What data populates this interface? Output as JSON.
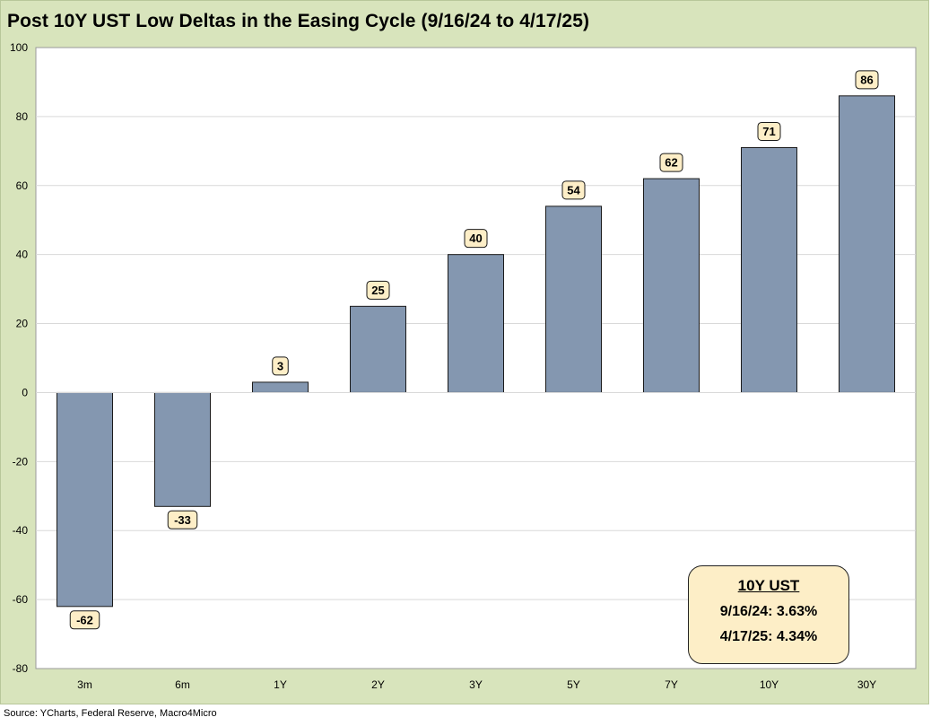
{
  "title": "Post 10Y UST Low Deltas in the Easing Cycle (9/16/24 to 4/17/25)",
  "source": "Source: YCharts, Federal Reserve, Macro4Micro",
  "info_box": {
    "title": "10Y UST",
    "line1": "9/16/24: 3.63%",
    "line2": "4/17/25: 4.34%"
  },
  "colors": {
    "background": "#d8e4bc",
    "plot": "#ffffff",
    "bar": "#8497b0",
    "label_box": "#fdeec7"
  },
  "chart_data": {
    "type": "bar",
    "title": "Post 10Y UST Low Deltas in the Easing Cycle (9/16/24 to 4/17/25)",
    "categories": [
      "3m",
      "6m",
      "1Y",
      "2Y",
      "3Y",
      "5Y",
      "7Y",
      "10Y",
      "30Y"
    ],
    "values": [
      -62,
      -33,
      3,
      25,
      40,
      54,
      62,
      71,
      86
    ],
    "ylim": [
      -80,
      100
    ],
    "yticks": [
      -80,
      -60,
      -40,
      -20,
      0,
      20,
      40,
      60,
      80,
      100
    ],
    "grid": true,
    "legend": "none",
    "data_labels": true
  }
}
